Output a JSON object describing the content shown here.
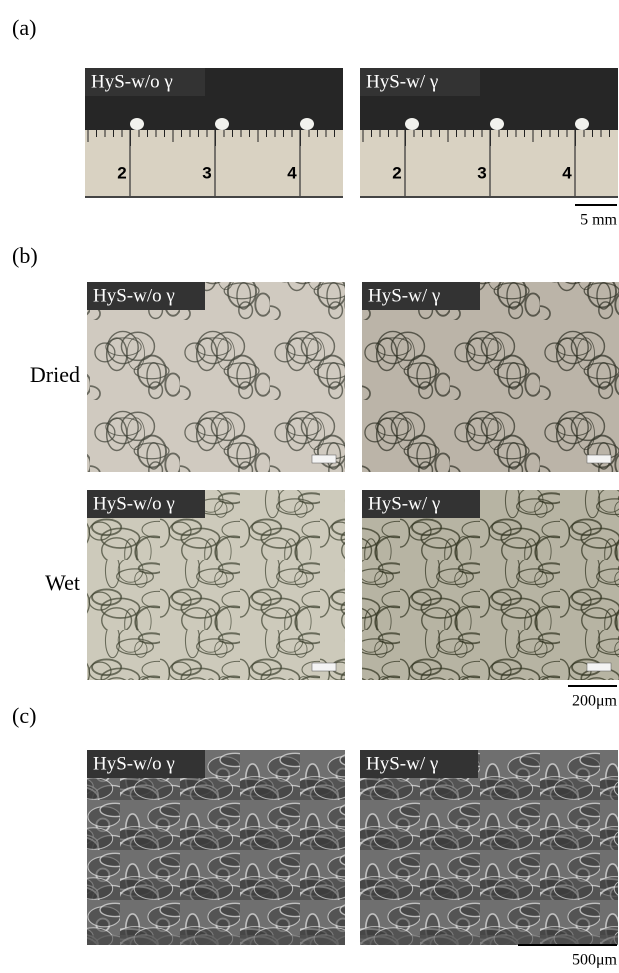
{
  "panel_a": {
    "label": "(a)",
    "images": [
      {
        "caption": "HyS-w/o γ"
      },
      {
        "caption": "HyS-w/ γ"
      }
    ],
    "ruler_numbers": [
      "2",
      "3",
      "4"
    ],
    "scale_bar": "5 mm"
  },
  "panel_b": {
    "label": "(b)",
    "rows": [
      {
        "label": "Dried",
        "images": [
          {
            "caption": "HyS-w/o γ"
          },
          {
            "caption": "HyS-w/ γ"
          }
        ]
      },
      {
        "label": "Wet",
        "images": [
          {
            "caption": "HyS-w/o γ"
          },
          {
            "caption": "HyS-w/ γ"
          }
        ]
      }
    ],
    "scale_bar": "200μm"
  },
  "panel_c": {
    "label": "(c)",
    "images": [
      {
        "caption": "HyS-w/o γ"
      },
      {
        "caption": "HyS-w/ γ"
      }
    ],
    "scale_bar": "500μm"
  }
}
